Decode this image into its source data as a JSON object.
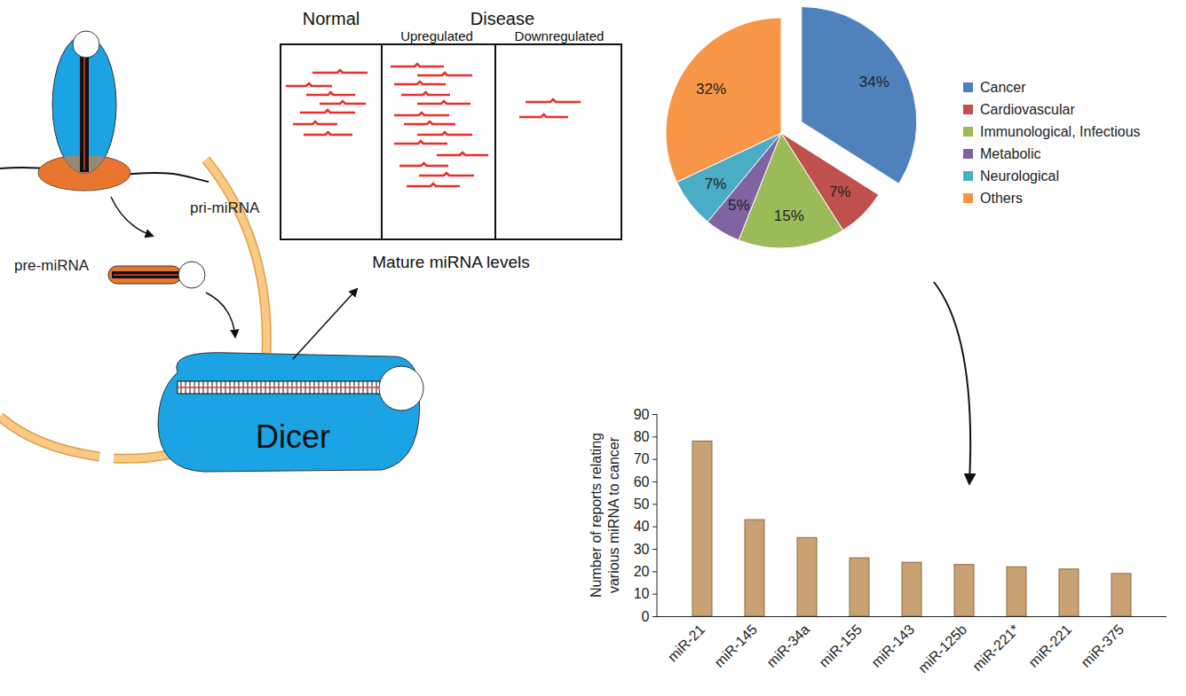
{
  "diagram": {
    "labels": {
      "pri": "pri-miRNA",
      "pre": "pre-miRNA",
      "dicer": "Dicer"
    },
    "panel": {
      "normal": "Normal",
      "disease": "Disease",
      "up": "Upregulated",
      "down": "Downregulated",
      "caption": "Mature miRNA levels"
    }
  },
  "chart_data": [
    {
      "type": "pie",
      "categories": [
        "Cancer",
        "Cardiovascular",
        "Immunological, Infectious",
        "Metabolic",
        "Neurological",
        "Others"
      ],
      "values": [
        34,
        7,
        15,
        5,
        7,
        32
      ],
      "value_labels": [
        "34%",
        "7%",
        "15%",
        "5%",
        "7%",
        "32%"
      ],
      "colors": [
        "#4f81bd",
        "#c0504d",
        "#9bbb59",
        "#8064a2",
        "#4bacc6",
        "#f79646"
      ],
      "data_labels": true,
      "legend": "right"
    },
    {
      "type": "bar",
      "categories": [
        "miR-21",
        "miR-145",
        "miR-34a",
        "miR-155",
        "miR-143",
        "miR-125b",
        "miR-221*",
        "miR-221",
        "miR-375"
      ],
      "values": [
        78,
        43,
        35,
        26,
        24,
        23,
        22,
        21,
        19
      ],
      "color": "#c9a273",
      "ylabel": "Number of reports relating various miRNA to cancer",
      "ylim": [
        0,
        90
      ],
      "yticks": [
        0,
        10,
        20,
        30,
        40,
        50,
        60,
        70,
        80,
        90
      ],
      "grid": false
    }
  ]
}
